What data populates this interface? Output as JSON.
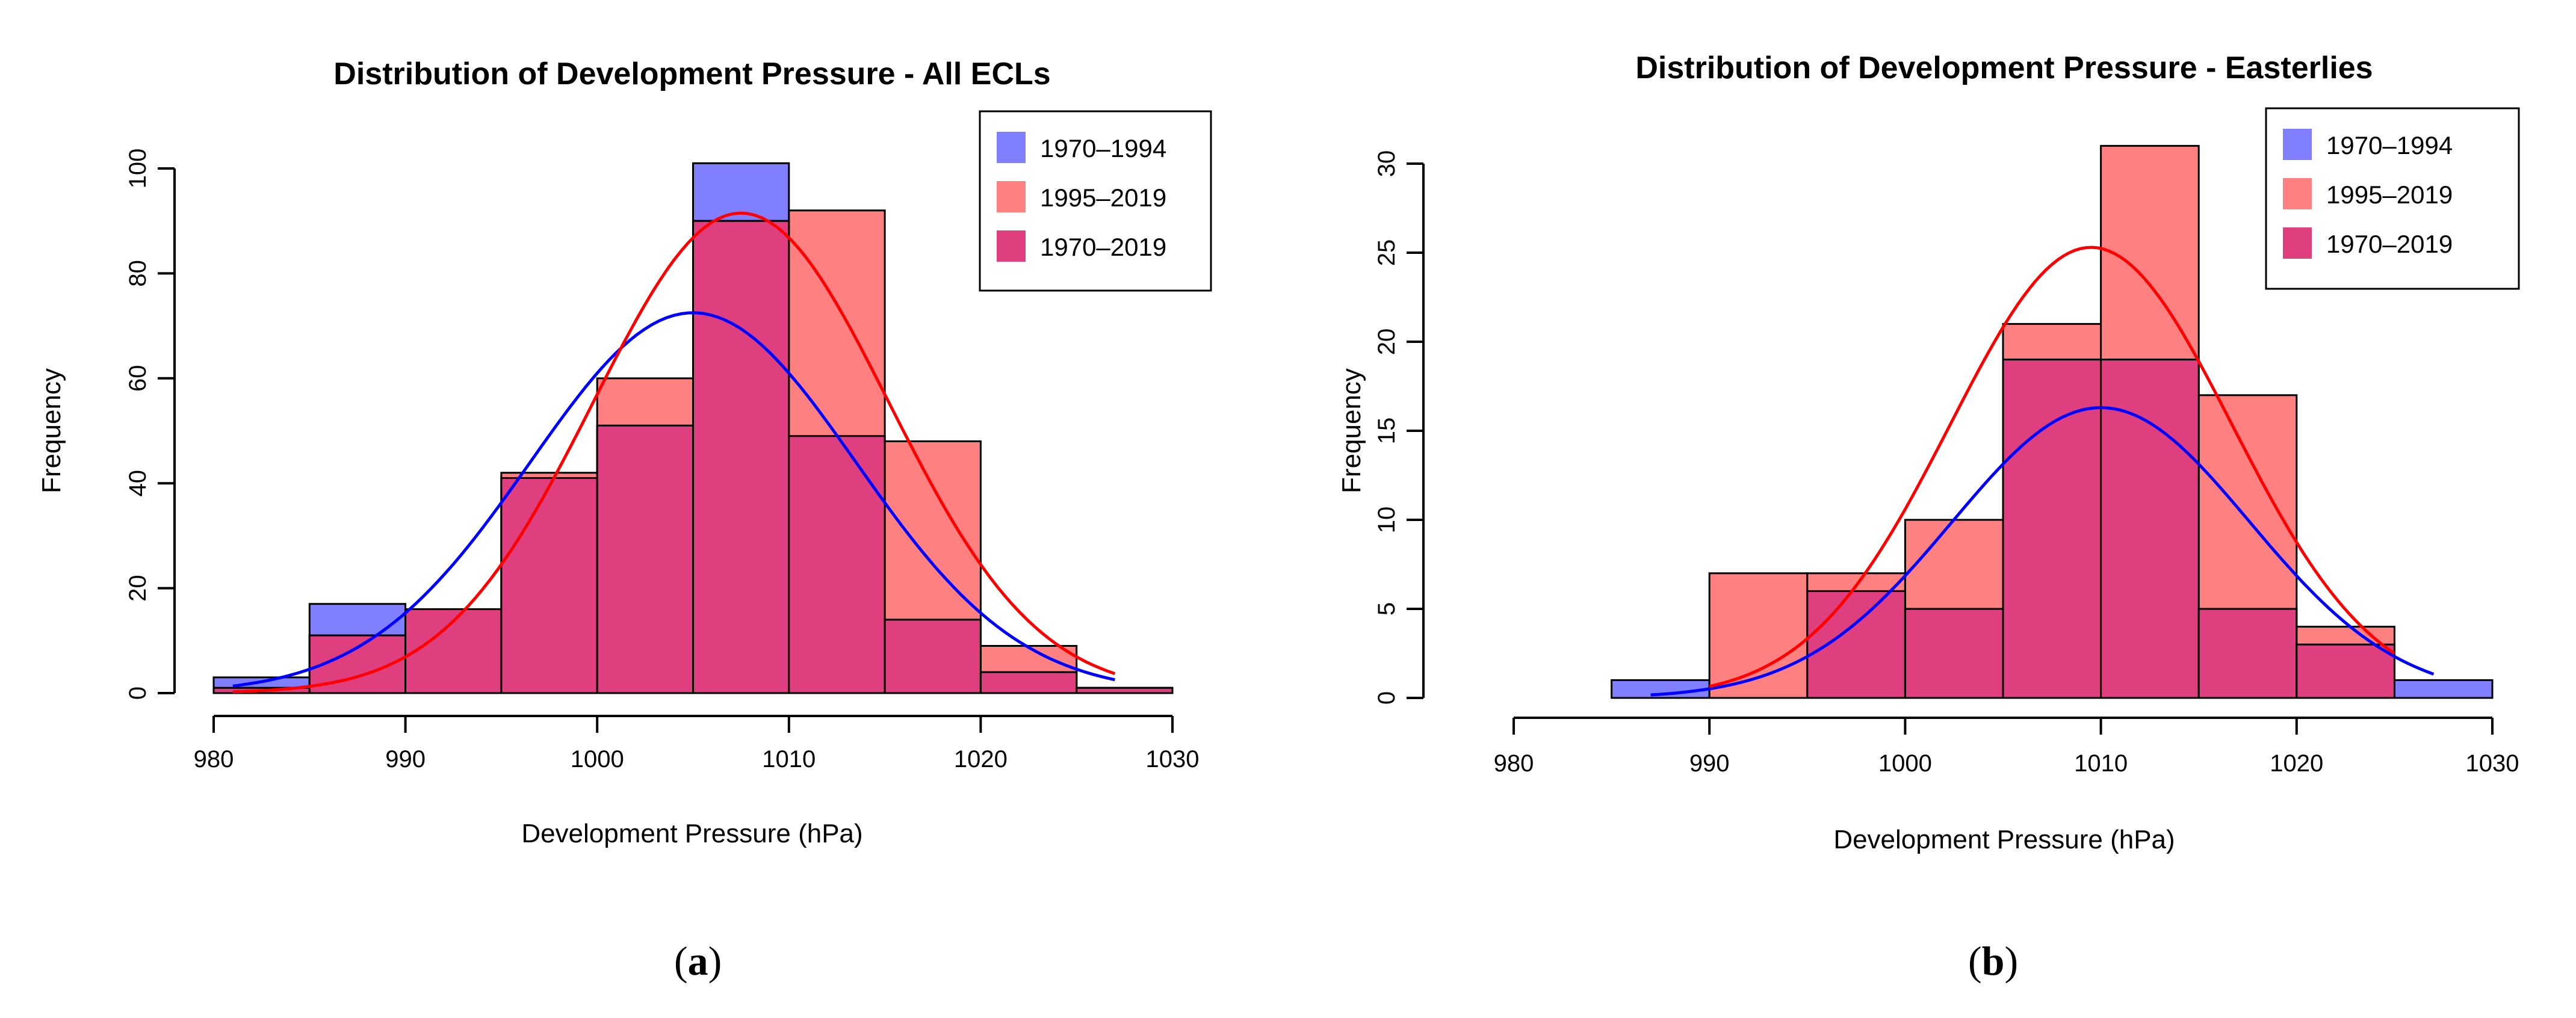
{
  "chart_data": [
    {
      "id": "a",
      "type": "histogram",
      "title": "Distribution of Development Pressure - All ECLs",
      "xlabel": "Development Pressure (hPa)",
      "ylabel": "Frequency",
      "xlim": [
        980,
        1030
      ],
      "ylim": [
        0,
        100
      ],
      "xticks": [
        "980",
        "990",
        "1000",
        "1010",
        "1020",
        "1030"
      ],
      "yticks": [
        "0",
        "20",
        "40",
        "60",
        "80",
        "100"
      ],
      "bin_edges": [
        980,
        985,
        990,
        995,
        1000,
        1005,
        1010,
        1015,
        1020,
        1025,
        1030
      ],
      "series": [
        {
          "name": "1970–1994",
          "color": "#7f7fff",
          "values": [
            3,
            17,
            16,
            41,
            51,
            101,
            49,
            14,
            4,
            1
          ]
        },
        {
          "name": "1995–2019",
          "color": "#ff8080",
          "values": [
            1,
            11,
            16,
            42,
            60,
            90,
            92,
            48,
            9,
            1
          ]
        },
        {
          "name": "1970–2019",
          "color": "#df3f7f"
        }
      ],
      "curves": [
        {
          "name": "1970–1994 normal fit",
          "color": "#0000ff",
          "mean": 1005.0,
          "peak": 72.5,
          "sd": 8.5,
          "x_range": [
            981,
            1027
          ]
        },
        {
          "name": "1995–2019 normal fit",
          "color": "#ff0000",
          "mean": 1007.5,
          "peak": 91.5,
          "sd": 7.7,
          "x_range": [
            981,
            1027
          ]
        }
      ],
      "legend": "top-right",
      "caption": "a"
    },
    {
      "id": "b",
      "type": "histogram",
      "title": "Distribution of Development Pressure - Easterlies",
      "xlabel": "Development Pressure (hPa)",
      "ylabel": "Frequency",
      "xlim": [
        980,
        1030
      ],
      "ylim": [
        0,
        30
      ],
      "xticks": [
        "980",
        "990",
        "1000",
        "1010",
        "1020",
        "1030"
      ],
      "yticks": [
        "0",
        "5",
        "10",
        "15",
        "20",
        "25",
        "30"
      ],
      "bin_edges": [
        985,
        990,
        995,
        1000,
        1005,
        1010,
        1015,
        1020,
        1025,
        1030
      ],
      "series": [
        {
          "name": "1970–1994",
          "color": "#7f7fff",
          "values": [
            1,
            0,
            6,
            5,
            19,
            19,
            5,
            3,
            1
          ]
        },
        {
          "name": "1995–2019",
          "color": "#ff8080",
          "values": [
            0,
            7,
            7,
            10,
            21,
            31,
            17,
            4,
            0
          ]
        },
        {
          "name": "1970–2019",
          "color": "#df3f7f"
        }
      ],
      "curves": [
        {
          "name": "1970–1994 normal fit",
          "color": "#0000ff",
          "mean": 1010.0,
          "peak": 16.3,
          "sd": 7.6,
          "x_range": [
            987,
            1027
          ]
        },
        {
          "name": "1995–2019 normal fit",
          "color": "#ff0000",
          "mean": 1009.5,
          "peak": 25.3,
          "sd": 7.2,
          "x_range": [
            990,
            1025
          ]
        }
      ],
      "legend": "top-right",
      "caption": "b"
    }
  ]
}
